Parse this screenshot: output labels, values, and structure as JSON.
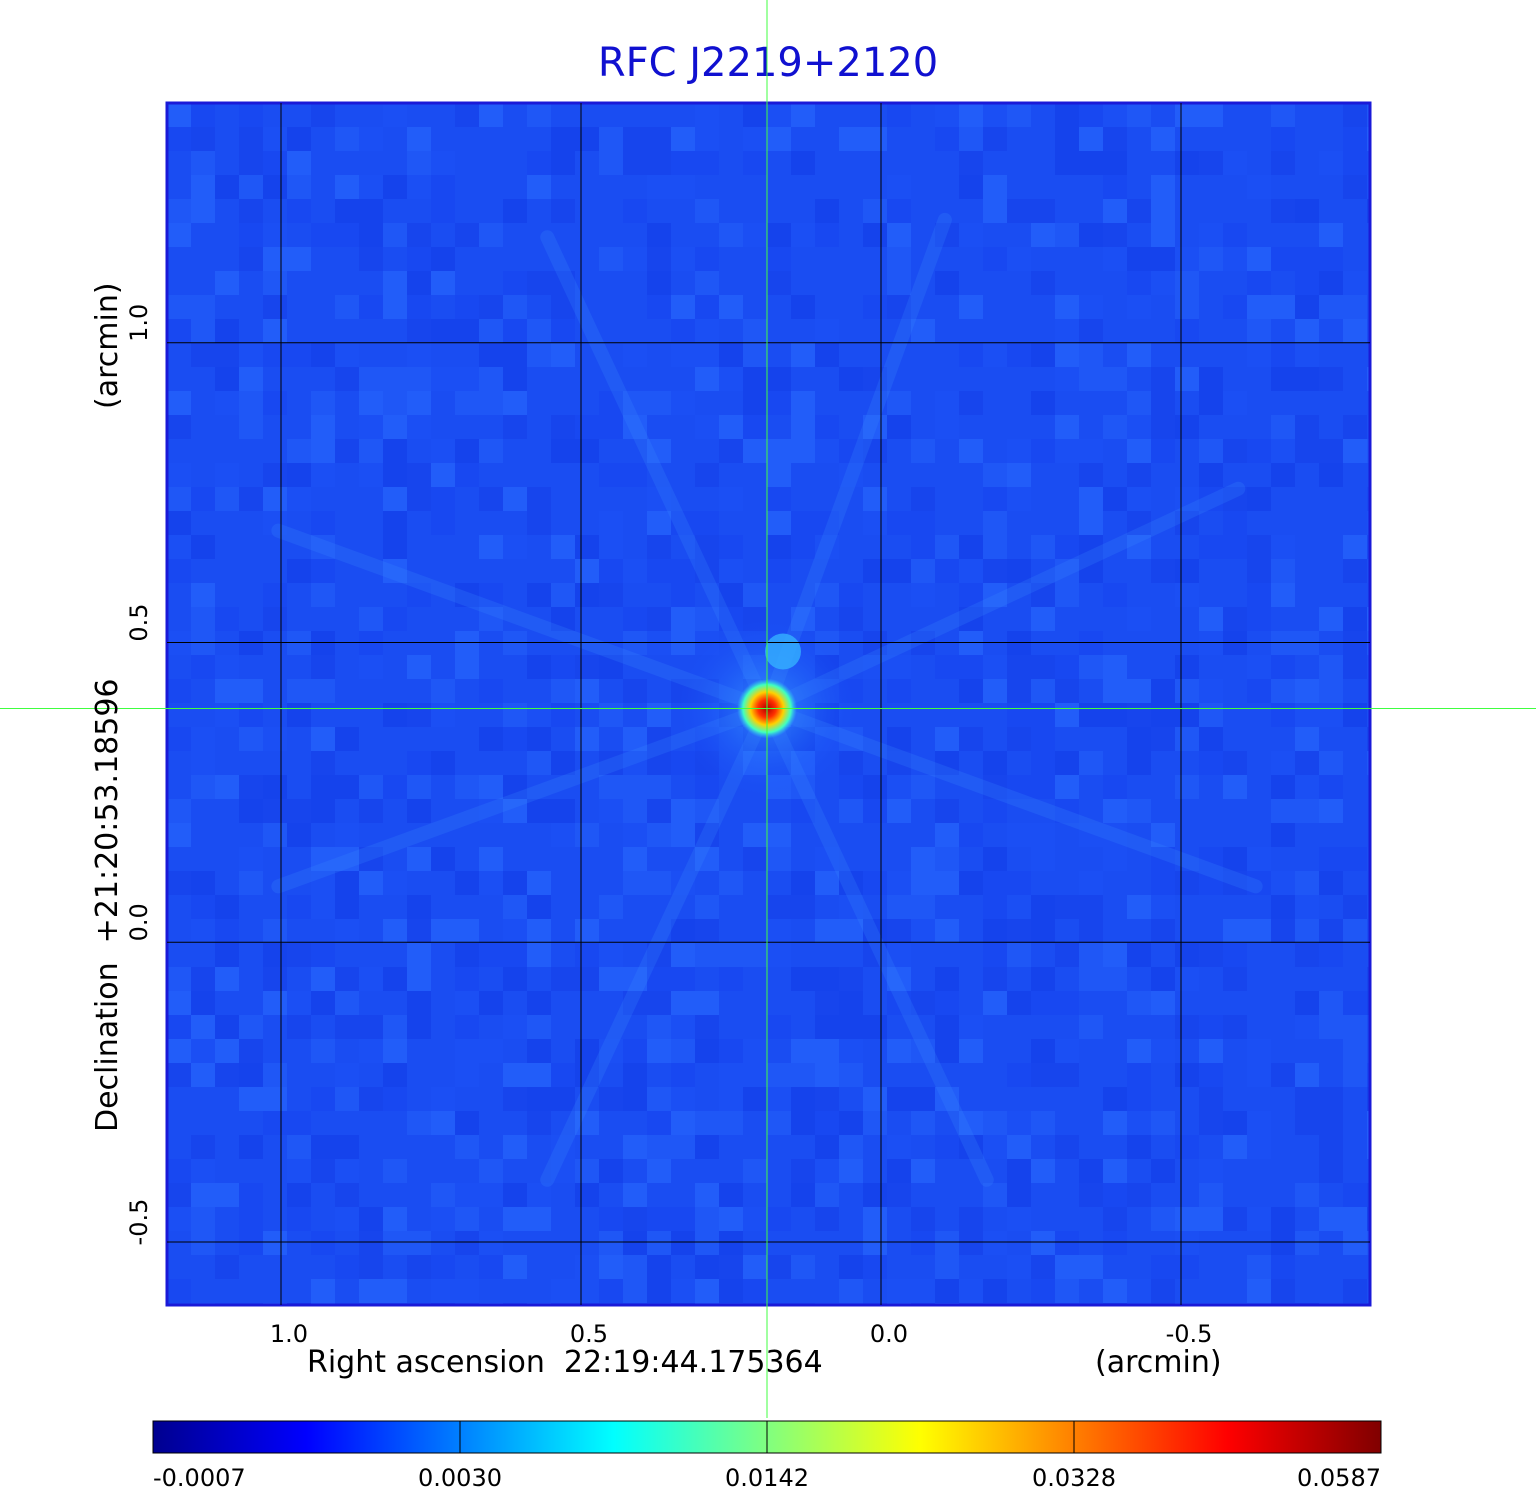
{
  "chart_data": {
    "type": "heatmap",
    "title": "RFC J2219+2120",
    "xlabel": "Right ascension  22:19:44.175364",
    "xunit": "(arcmin)",
    "ylabel": "Declination  +21:20:53.18596",
    "yunit": "(arcmin)",
    "x_ticks": [
      "1.0",
      "0.5",
      "0.0",
      "-0.5"
    ],
    "x_tick_values": [
      1.0,
      0.5,
      0.0,
      -0.5
    ],
    "y_ticks": [
      "1.0",
      "0.5",
      "0.0",
      "-0.5"
    ],
    "y_tick_values": [
      1.0,
      0.5,
      0.0,
      -0.5
    ],
    "xlim": [
      1.19,
      -0.815
    ],
    "ylim": [
      -0.605,
      1.4
    ],
    "grid": true,
    "crosshair": {
      "x": 0.19,
      "y": 0.39
    },
    "source": {
      "x": 0.19,
      "y": 0.39,
      "peak": 0.0587
    },
    "colorbar": {
      "ticks": [
        "-0.0007",
        "0.0030",
        "0.0142",
        "0.0328",
        "0.0587"
      ],
      "min": -0.0007,
      "max": 0.0587,
      "colormap": "jet"
    }
  }
}
